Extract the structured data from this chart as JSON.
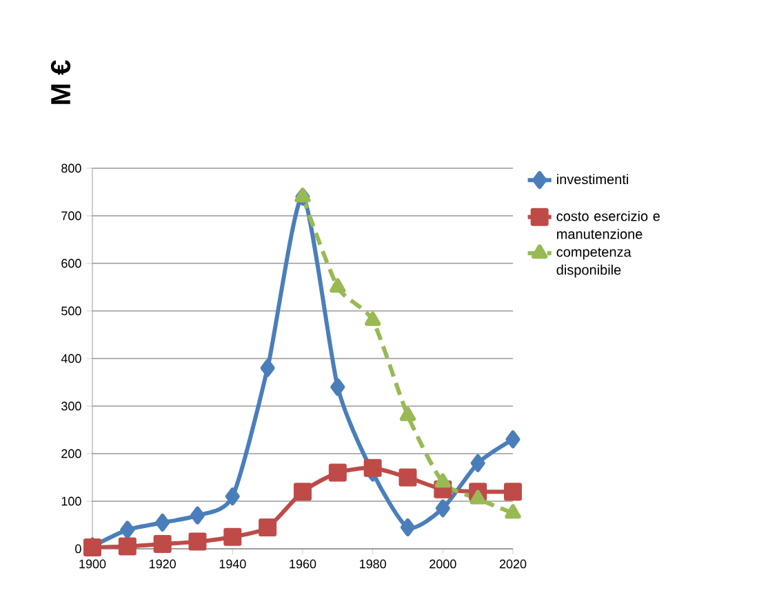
{
  "chart_data": {
    "type": "line",
    "ylabel": "M €",
    "x": [
      1900,
      1910,
      1920,
      1930,
      1940,
      1950,
      1960,
      1970,
      1980,
      1990,
      2000,
      2010,
      2020
    ],
    "series": [
      {
        "name": "investimenti",
        "color": "#4a7ebb",
        "marker": "diamond",
        "line_style": "solid",
        "values": [
          5,
          40,
          55,
          70,
          110,
          380,
          740,
          340,
          160,
          45,
          85,
          180,
          230
        ]
      },
      {
        "name": "costo esercizio e manutenzione",
        "color": "#be4b48",
        "marker": "square",
        "line_style": "solid",
        "values": [
          3,
          5,
          10,
          15,
          25,
          45,
          120,
          160,
          170,
          150,
          125,
          120,
          120
        ]
      },
      {
        "name": "competenza disponibile",
        "color": "#98b954",
        "marker": "triangle",
        "line_style": "dashed",
        "x": [
          1960,
          1970,
          1980,
          1990,
          2000,
          2010,
          2020
        ],
        "values": [
          740,
          550,
          480,
          280,
          140,
          105,
          75
        ]
      }
    ],
    "xlim": [
      1900,
      2020
    ],
    "xticks": [
      1900,
      1920,
      1940,
      1960,
      1980,
      2000,
      2020
    ],
    "ylim": [
      0,
      800
    ],
    "yticks": [
      0,
      100,
      200,
      300,
      400,
      500,
      600,
      700,
      800
    ],
    "grid": "y",
    "legend": "right"
  }
}
